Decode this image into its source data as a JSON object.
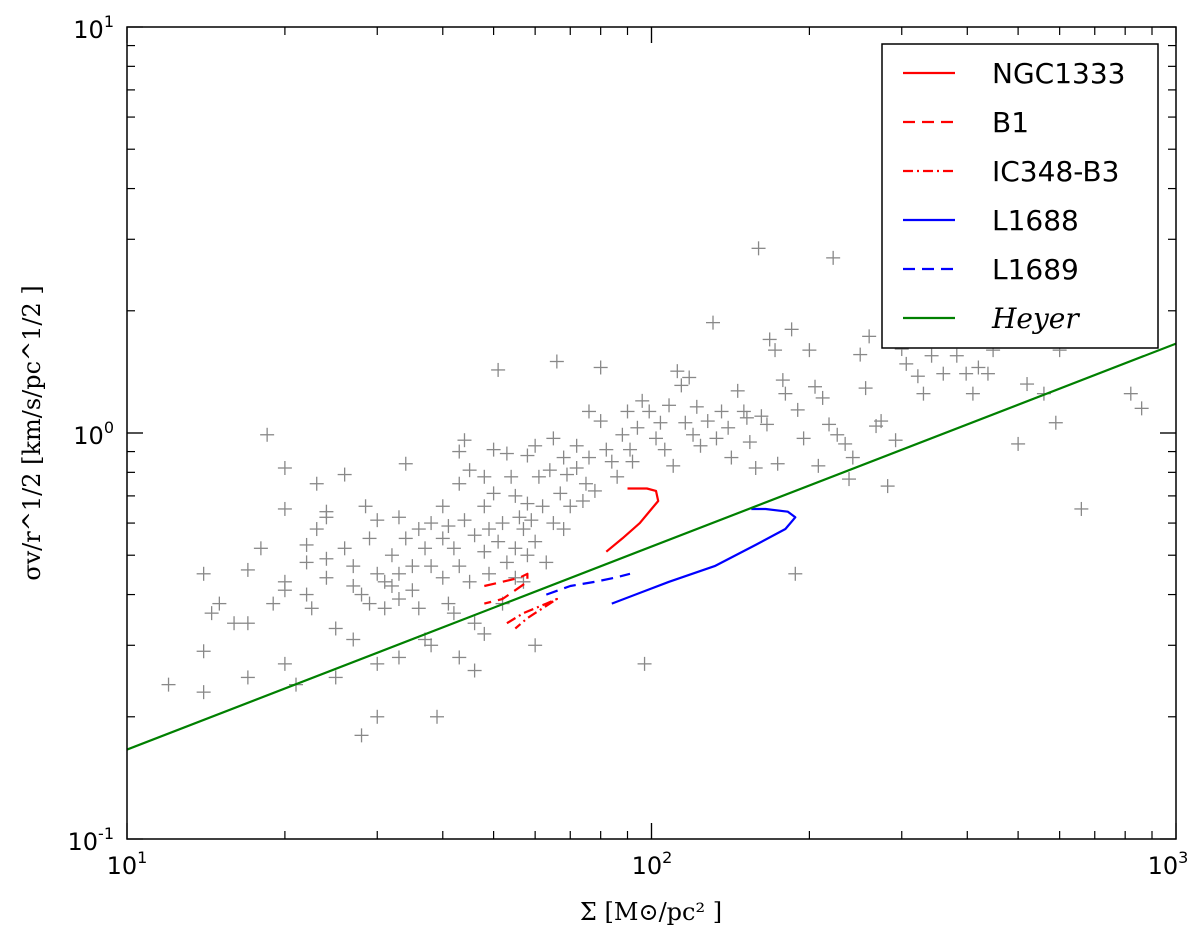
{
  "chart_data": {
    "type": "scatter",
    "xscale": "log",
    "yscale": "log",
    "xlim": [
      10,
      1000
    ],
    "ylim": [
      0.1,
      10
    ],
    "xlabel": "Σ [M⊙/pc² ]",
    "ylabel": "σv/r^1/2 [km/s/pc^1/2 ]",
    "x_ticks": [
      {
        "base": "10",
        "exp": "1",
        "value": 10
      },
      {
        "base": "10",
        "exp": "2",
        "value": 100
      },
      {
        "base": "10",
        "exp": "3",
        "value": 1000
      }
    ],
    "y_ticks": [
      {
        "base": "10",
        "exp": "-1",
        "value": 0.1
      },
      {
        "base": "10",
        "exp": "0",
        "value": 1
      },
      {
        "base": "10",
        "exp": "1",
        "value": 10
      }
    ],
    "legend_position": "top-right",
    "legend": [
      {
        "label": "NGC1333",
        "color": "#ff0000",
        "style": "solid"
      },
      {
        "label": "B1",
        "color": "#ff0000",
        "style": "dashed"
      },
      {
        "label": "IC348-B3",
        "color": "#ff0000",
        "style": "dashdot"
      },
      {
        "label": "L1688",
        "color": "#0000ff",
        "style": "solid"
      },
      {
        "label": "L1689",
        "color": "#0000ff",
        "style": "dashed"
      },
      {
        "label": "Heyer",
        "color": "#008000",
        "style": "solid",
        "italic": true
      }
    ],
    "series": [
      {
        "name": "NGC1333",
        "color": "#ff0000",
        "style": "solid",
        "points": [
          [
            82,
            0.51
          ],
          [
            88,
            0.55
          ],
          [
            95,
            0.6
          ],
          [
            100,
            0.65
          ],
          [
            103,
            0.68
          ],
          [
            102,
            0.72
          ],
          [
            98,
            0.73
          ],
          [
            90,
            0.73
          ]
        ]
      },
      {
        "name": "B1",
        "color": "#ff0000",
        "style": "dashed",
        "points": [
          [
            48,
            0.42
          ],
          [
            52,
            0.43
          ],
          [
            56,
            0.44
          ],
          [
            58,
            0.45
          ],
          [
            58,
            0.43
          ],
          [
            55,
            0.41
          ],
          [
            52,
            0.39
          ],
          [
            48,
            0.38
          ]
        ]
      },
      {
        "name": "IC348-B3",
        "color": "#ff0000",
        "style": "dashdot",
        "points": [
          [
            53,
            0.34
          ],
          [
            57,
            0.36
          ],
          [
            60,
            0.37
          ],
          [
            63,
            0.38
          ],
          [
            66,
            0.39
          ],
          [
            62,
            0.37
          ],
          [
            58,
            0.35
          ],
          [
            55,
            0.33
          ]
        ]
      },
      {
        "name": "L1688",
        "color": "#0000ff",
        "style": "solid",
        "points": [
          [
            84,
            0.38
          ],
          [
            108,
            0.43
          ],
          [
            132,
            0.47
          ],
          [
            158,
            0.53
          ],
          [
            180,
            0.58
          ],
          [
            188,
            0.62
          ],
          [
            182,
            0.64
          ],
          [
            165,
            0.65
          ],
          [
            155,
            0.65
          ]
        ]
      },
      {
        "name": "L1689",
        "color": "#0000ff",
        "style": "dashed",
        "points": [
          [
            63,
            0.4
          ],
          [
            70,
            0.42
          ],
          [
            78,
            0.43
          ],
          [
            85,
            0.44
          ],
          [
            91,
            0.45
          ]
        ]
      },
      {
        "name": "Heyer",
        "color": "#008000",
        "style": "solid",
        "points": [
          [
            10,
            0.166
          ],
          [
            1000,
            1.66
          ]
        ]
      }
    ],
    "scatter": {
      "name": "",
      "color": "#888888",
      "marker": "+",
      "points": [
        [
          12,
          0.24
        ],
        [
          14,
          0.23
        ],
        [
          14.5,
          0.36
        ],
        [
          14,
          0.45
        ],
        [
          15,
          0.38
        ],
        [
          16,
          0.34
        ],
        [
          14,
          0.29
        ],
        [
          17,
          0.25
        ],
        [
          17,
          0.46
        ],
        [
          17,
          0.34
        ],
        [
          18,
          0.52
        ],
        [
          18.5,
          0.99
        ],
        [
          19,
          0.38
        ],
        [
          20,
          0.82
        ],
        [
          20,
          0.65
        ],
        [
          20,
          0.43
        ],
        [
          20,
          0.41
        ],
        [
          20,
          0.27
        ],
        [
          21,
          0.24
        ],
        [
          22,
          0.53
        ],
        [
          22,
          0.48
        ],
        [
          22,
          0.4
        ],
        [
          22.5,
          0.37
        ],
        [
          23,
          0.75
        ],
        [
          23,
          0.58
        ],
        [
          24,
          0.64
        ],
        [
          24,
          0.62
        ],
        [
          24,
          0.49
        ],
        [
          24,
          0.44
        ],
        [
          25,
          0.33
        ],
        [
          25,
          0.25
        ],
        [
          26,
          0.79
        ],
        [
          26,
          0.52
        ],
        [
          27,
          0.47
        ],
        [
          27,
          0.42
        ],
        [
          27,
          0.31
        ],
        [
          28,
          0.4
        ],
        [
          28,
          0.18
        ],
        [
          28.5,
          0.66
        ],
        [
          29,
          0.55
        ],
        [
          29,
          0.38
        ],
        [
          30,
          0.61
        ],
        [
          30,
          0.45
        ],
        [
          30,
          0.27
        ],
        [
          30,
          0.2
        ],
        [
          31,
          0.43
        ],
        [
          31,
          0.37
        ],
        [
          32,
          0.5
        ],
        [
          32,
          0.42
        ],
        [
          33,
          0.62
        ],
        [
          33,
          0.45
        ],
        [
          33,
          0.39
        ],
        [
          33,
          0.28
        ],
        [
          34,
          0.84
        ],
        [
          34,
          0.55
        ],
        [
          35,
          0.47
        ],
        [
          35,
          0.41
        ],
        [
          36,
          0.58
        ],
        [
          36,
          0.37
        ],
        [
          37,
          0.52
        ],
        [
          37,
          0.31
        ],
        [
          38,
          0.6
        ],
        [
          38,
          0.47
        ],
        [
          38,
          0.3
        ],
        [
          39,
          0.2
        ],
        [
          40,
          0.66
        ],
        [
          40,
          0.55
        ],
        [
          40,
          0.44
        ],
        [
          41,
          0.59
        ],
        [
          41,
          0.38
        ],
        [
          42,
          0.52
        ],
        [
          42,
          0.36
        ],
        [
          43,
          0.9
        ],
        [
          43,
          0.75
        ],
        [
          43,
          0.47
        ],
        [
          43,
          0.28
        ],
        [
          44,
          0.96
        ],
        [
          44,
          0.61
        ],
        [
          45,
          0.81
        ],
        [
          45,
          0.43
        ],
        [
          46,
          0.56
        ],
        [
          46,
          0.34
        ],
        [
          46,
          0.26
        ],
        [
          48,
          0.78
        ],
        [
          48,
          0.66
        ],
        [
          48,
          0.51
        ],
        [
          48,
          0.32
        ],
        [
          49,
          0.58
        ],
        [
          49,
          0.45
        ],
        [
          50,
          0.91
        ],
        [
          50,
          0.71
        ],
        [
          51,
          1.43
        ],
        [
          51,
          0.54
        ],
        [
          52,
          0.6
        ],
        [
          52,
          0.38
        ],
        [
          53,
          0.89
        ],
        [
          53,
          0.48
        ],
        [
          54,
          0.78
        ],
        [
          55,
          0.7
        ],
        [
          55,
          0.52
        ],
        [
          55,
          0.44
        ],
        [
          56,
          0.62
        ],
        [
          57,
          0.58
        ],
        [
          57,
          0.43
        ],
        [
          58,
          0.88
        ],
        [
          58,
          0.67
        ],
        [
          58,
          0.5
        ],
        [
          59,
          0.61
        ],
        [
          60,
          0.93
        ],
        [
          60,
          0.54
        ],
        [
          60,
          0.3
        ],
        [
          61,
          0.78
        ],
        [
          62,
          0.66
        ],
        [
          63,
          0.48
        ],
        [
          64,
          0.81
        ],
        [
          65,
          0.97
        ],
        [
          65,
          0.6
        ],
        [
          66,
          1.5
        ],
        [
          67,
          0.71
        ],
        [
          68,
          0.87
        ],
        [
          68,
          0.58
        ],
        [
          69,
          0.79
        ],
        [
          70,
          0.66
        ],
        [
          72,
          0.82
        ],
        [
          72,
          0.93
        ],
        [
          74,
          0.68
        ],
        [
          75,
          0.75
        ],
        [
          76,
          1.13
        ],
        [
          76,
          0.87
        ],
        [
          78,
          0.72
        ],
        [
          80,
          1.45
        ],
        [
          80,
          1.07
        ],
        [
          82,
          0.91
        ],
        [
          84,
          0.85
        ],
        [
          86,
          0.78
        ],
        [
          88,
          0.99
        ],
        [
          90,
          1.13
        ],
        [
          91,
          0.91
        ],
        [
          92,
          0.85
        ],
        [
          94,
          1.03
        ],
        [
          96,
          1.2
        ],
        [
          97,
          0.27
        ],
        [
          99,
          1.13
        ],
        [
          102,
          0.97
        ],
        [
          104,
          1.06
        ],
        [
          106,
          0.91
        ],
        [
          108,
          1.17
        ],
        [
          110,
          0.83
        ],
        [
          112,
          1.42
        ],
        [
          114,
          1.31
        ],
        [
          116,
          1.06
        ],
        [
          118,
          1.37
        ],
        [
          120,
          0.99
        ],
        [
          122,
          1.16
        ],
        [
          124,
          0.93
        ],
        [
          128,
          1.07
        ],
        [
          131,
          1.87
        ],
        [
          133,
          0.97
        ],
        [
          136,
          1.13
        ],
        [
          140,
          1.03
        ],
        [
          142,
          0.87
        ],
        [
          146,
          1.27
        ],
        [
          150,
          1.13
        ],
        [
          152,
          1.09
        ],
        [
          154,
          0.95
        ],
        [
          158,
          0.82
        ],
        [
          160,
          2.85
        ],
        [
          162,
          1.1
        ],
        [
          166,
          1.05
        ],
        [
          168,
          1.7
        ],
        [
          172,
          1.6
        ],
        [
          174,
          0.84
        ],
        [
          178,
          1.35
        ],
        [
          180,
          1.25
        ],
        [
          185,
          1.8
        ],
        [
          188,
          0.45
        ],
        [
          190,
          1.14
        ],
        [
          195,
          0.97
        ],
        [
          200,
          1.6
        ],
        [
          205,
          1.3
        ],
        [
          208,
          0.83
        ],
        [
          212,
          1.22
        ],
        [
          218,
          1.05
        ],
        [
          222,
          2.7
        ],
        [
          226,
          0.99
        ],
        [
          234,
          0.94
        ],
        [
          238,
          0.77
        ],
        [
          242,
          0.87
        ],
        [
          250,
          1.56
        ],
        [
          256,
          1.29
        ],
        [
          260,
          1.73
        ],
        [
          268,
          1.04
        ],
        [
          274,
          1.07
        ],
        [
          282,
          0.74
        ],
        [
          292,
          0.96
        ],
        [
          300,
          1.61
        ],
        [
          306,
          1.48
        ],
        [
          316,
          1.7
        ],
        [
          322,
          1.38
        ],
        [
          330,
          1.25
        ],
        [
          342,
          1.55
        ],
        [
          360,
          1.4
        ],
        [
          382,
          1.55
        ],
        [
          398,
          1.4
        ],
        [
          410,
          1.25
        ],
        [
          420,
          1.45
        ],
        [
          438,
          1.4
        ],
        [
          448,
          1.6
        ],
        [
          500,
          0.94
        ],
        [
          520,
          1.32
        ],
        [
          560,
          1.25
        ],
        [
          590,
          1.06
        ],
        [
          600,
          1.6
        ],
        [
          660,
          0.65
        ],
        [
          820,
          1.25
        ],
        [
          860,
          1.15
        ]
      ]
    }
  }
}
